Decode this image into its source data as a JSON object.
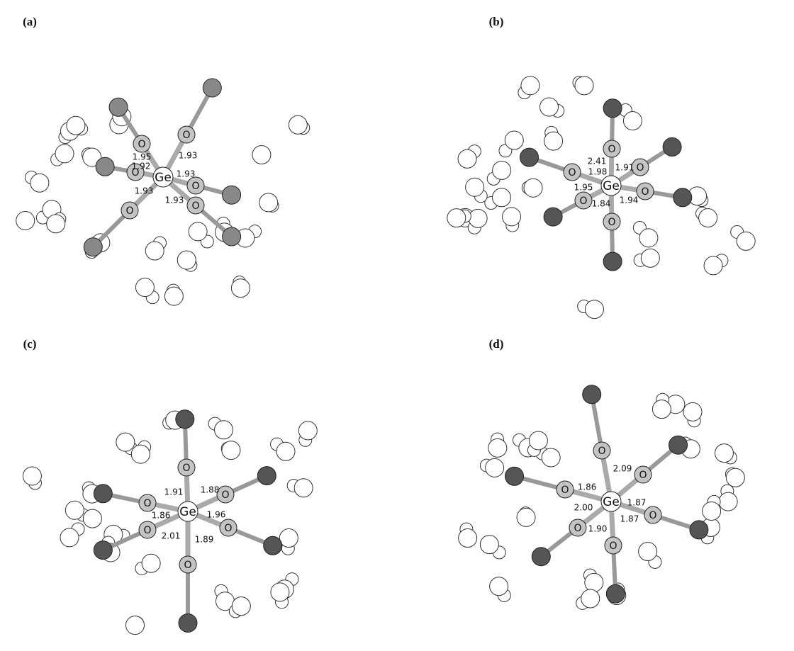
{
  "panels": [
    {
      "label": "(a)",
      "center": "Ge",
      "oxygens": [
        "O",
        "O",
        "O",
        "O",
        "O",
        "O"
      ],
      "bonds": [
        "1.95",
        "1.93",
        "1.92",
        "1.93",
        "1.93",
        "1.93"
      ]
    },
    {
      "label": "(b)",
      "center": "Ge",
      "oxygens": [
        "O",
        "O",
        "O",
        "O",
        "O",
        "O"
      ],
      "bonds": [
        "2.41",
        "1.98",
        "1.91",
        "1.95",
        "1.84",
        "1.94"
      ]
    },
    {
      "label": "(c)",
      "center": "Ge",
      "oxygens": [
        "O",
        "O",
        "O",
        "O",
        "O",
        "O"
      ],
      "bonds": [
        "1.91",
        "1.88",
        "1.86",
        "1.96",
        "2.01",
        "1.89"
      ]
    },
    {
      "label": "(d)",
      "center": "Ge",
      "oxygens": [
        "O",
        "O",
        "O",
        "O",
        "O",
        "O"
      ],
      "bonds": [
        "2.09",
        "1.86",
        "2.00",
        "1.87",
        "1.87",
        "1.90"
      ]
    }
  ]
}
